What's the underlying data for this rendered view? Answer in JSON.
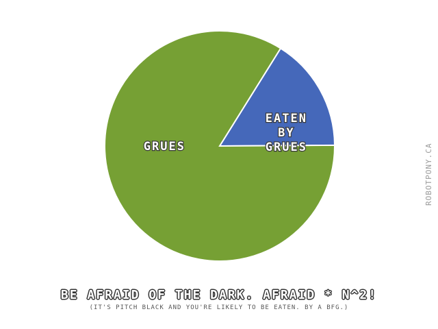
{
  "chart_data": {
    "type": "pie",
    "title": "BE AFRAID OF THE DARK. AFRAID * N^2!",
    "subtitle": "(IT'S PITCH BLACK AND YOU'RE LIKELY TO BE EATEN. BY A BFG.)",
    "slices": [
      {
        "label": "GRUES",
        "value": 84,
        "color": "#76a034"
      },
      {
        "label": "EATEN BY GRUES",
        "value": 16,
        "color": "#4568ba"
      }
    ]
  },
  "credit": "ROBOTPONY.CA"
}
